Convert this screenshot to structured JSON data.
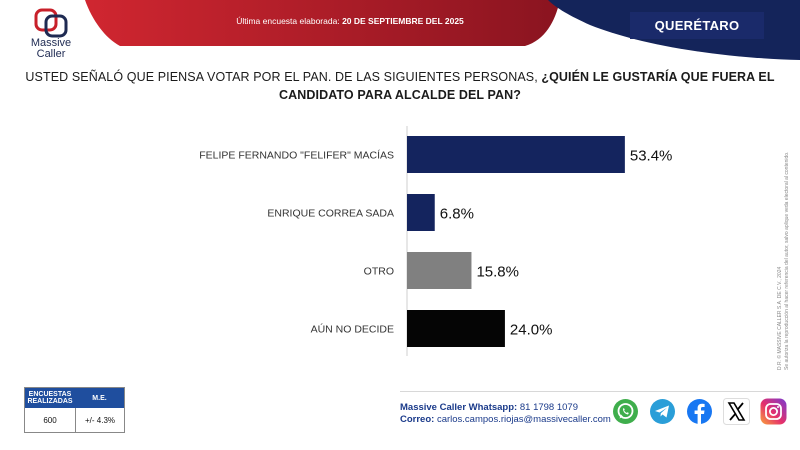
{
  "header": {
    "logo_line1": "Massive",
    "logo_line2": "Caller",
    "survey_date_label": "Última encuesta elaborada:",
    "survey_date_value": "20 DE SEPTIEMBRE DEL 2025",
    "state": "QUERÉTARO",
    "colors": {
      "red": "#b51f2a",
      "navy": "#14245a"
    }
  },
  "question": {
    "part1": "USTED SEÑALÓ QUE PIENSA VOTAR POR EL PAN. DE LAS SIGUIENTES PERSONAS,",
    "part2": "¿QUIÉN LE GUSTARÍA QUE FUERA EL CANDIDATO PARA ALCALDE DEL PAN?"
  },
  "chart_data": {
    "type": "bar",
    "orientation": "horizontal",
    "categories": [
      "FELIPE FERNANDO \"FELIFER\" MACÍAS",
      "ENRIQUE CORREA SADA",
      "OTRO",
      "AÚN NO DECIDE"
    ],
    "values": [
      53.4,
      6.8,
      15.8,
      24.0
    ],
    "value_labels": [
      "53.4%",
      "6.8%",
      "15.8%",
      "24.0%"
    ],
    "colors": [
      "#14245e",
      "#14245e",
      "#808080",
      "#050505"
    ],
    "title": "",
    "xlabel": "",
    "ylabel": "",
    "xlim": [
      0,
      100
    ],
    "grid": false
  },
  "copyright": {
    "line1": "D.R. © MASSIVE CALLER S.A. DE C.V., 2024",
    "line2": "Se autoriza la reproducción al hacer referencia del autor, salvo aplique veda electoral al contenido."
  },
  "stats": {
    "col1_header": "ENCUESTAS REALIZADAS",
    "col2_header": "M.E.",
    "surveys": "600",
    "margin_error": "+/- 4.3%"
  },
  "contact": {
    "whatsapp_label": "Massive Caller Whatsapp:",
    "whatsapp_value": "81 1798 1079",
    "email_label": "Correo:",
    "email_value": "carlos.campos.riojas@massivecaller.com"
  },
  "socials": [
    "whatsapp-icon",
    "telegram-icon",
    "facebook-icon",
    "x-icon",
    "instagram-icon"
  ]
}
